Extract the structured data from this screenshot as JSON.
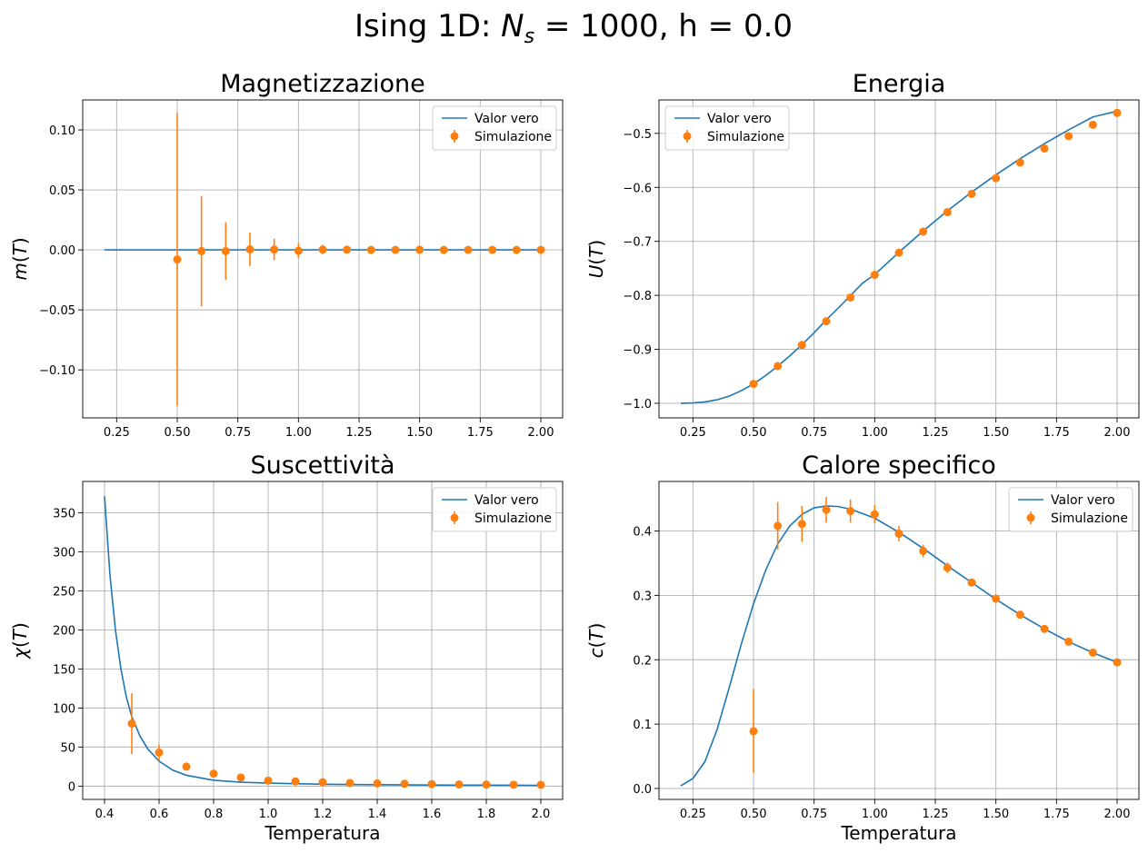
{
  "figure": {
    "suptitle_prefix": "Ising 1D: ",
    "suptitle_symbol": "N",
    "suptitle_subscript": "s",
    "suptitle_suffix": " = 1000, h = 0.0"
  },
  "colors": {
    "line": "#1f77b4",
    "points": "#ff7f0e",
    "grid": "#b0b0b0",
    "axis": "#000000"
  },
  "chart_data": [
    {
      "id": "magn",
      "type": "line",
      "title": "Magnetizzazione",
      "xlabel": "",
      "ylabel_sym": "m",
      "ylabel_arg": "T",
      "xlim": [
        0.11,
        2.09
      ],
      "ylim": [
        -0.14,
        0.125
      ],
      "xticks": [
        0.25,
        0.5,
        0.75,
        1.0,
        1.25,
        1.5,
        1.75,
        2.0
      ],
      "xticklabels": [
        "0.25",
        "0.50",
        "0.75",
        "1.00",
        "1.25",
        "1.50",
        "1.75",
        "2.00"
      ],
      "yticks": [
        -0.1,
        -0.05,
        0.0,
        0.05,
        0.1
      ],
      "yticklabels": [
        "−0.10",
        "−0.05",
        "0.00",
        "0.05",
        "0.10"
      ],
      "legend": {
        "position": "top-right",
        "line_label": "Valor vero",
        "points_label": "Simulazione"
      },
      "series": [
        {
          "name": "Valor vero",
          "kind": "curve",
          "x": [
            0.2,
            2.0
          ],
          "y": [
            0.0,
            0.0
          ]
        },
        {
          "name": "Simulazione",
          "kind": "errorbar",
          "x": [
            0.5,
            0.6,
            0.7,
            0.8,
            0.9,
            1.0,
            1.1,
            1.2,
            1.3,
            1.4,
            1.5,
            1.6,
            1.7,
            1.8,
            1.9,
            2.0
          ],
          "y": [
            -0.008,
            -0.001,
            -0.001,
            0.0005,
            0.0003,
            -0.0008,
            0.0003,
            0.0002,
            0.0,
            0.0,
            0.0001,
            0.0,
            0.0,
            0.0,
            0.0,
            0.0
          ],
          "yerr": [
            0.122,
            0.046,
            0.024,
            0.014,
            0.009,
            0.006,
            0.004,
            0.003,
            0.002,
            0.002,
            0.0015,
            0.001,
            0.001,
            0.001,
            0.001,
            0.001
          ]
        }
      ]
    },
    {
      "id": "energia",
      "type": "line",
      "title": "Energia",
      "xlabel": "",
      "ylabel_sym": "U",
      "ylabel_arg": "T",
      "xlim": [
        0.11,
        2.09
      ],
      "ylim": [
        -1.027,
        -0.438
      ],
      "xticks": [
        0.25,
        0.5,
        0.75,
        1.0,
        1.25,
        1.5,
        1.75,
        2.0
      ],
      "xticklabels": [
        "0.25",
        "0.50",
        "0.75",
        "1.00",
        "1.25",
        "1.50",
        "1.75",
        "2.00"
      ],
      "yticks": [
        -1.0,
        -0.9,
        -0.8,
        -0.7,
        -0.6,
        -0.5
      ],
      "yticklabels": [
        "−1.0",
        "−0.9",
        "−0.8",
        "−0.7",
        "−0.6",
        "−0.5"
      ],
      "legend": {
        "position": "top-left",
        "line_label": "Valor vero",
        "points_label": "Simulazione"
      },
      "series": [
        {
          "name": "Valor vero",
          "kind": "curve",
          "x": [
            0.2,
            0.25,
            0.3,
            0.35,
            0.4,
            0.45,
            0.5,
            0.55,
            0.6,
            0.65,
            0.7,
            0.75,
            0.8,
            0.85,
            0.9,
            0.95,
            1.0,
            1.1,
            1.2,
            1.3,
            1.4,
            1.5,
            1.6,
            1.7,
            1.8,
            1.9,
            2.0
          ],
          "y": [
            -1.0,
            -0.9993,
            -0.9975,
            -0.9935,
            -0.9866,
            -0.9766,
            -0.964,
            -0.9488,
            -0.9311,
            -0.9119,
            -0.8915,
            -0.8694,
            -0.8455,
            -0.8233,
            -0.8005,
            -0.7773,
            -0.7616,
            -0.7201,
            -0.6807,
            -0.6436,
            -0.6089,
            -0.5767,
            -0.5468,
            -0.5191,
            -0.4934,
            -0.4696,
            -0.4587
          ]
        },
        {
          "name": "Simulazione",
          "kind": "errorbar",
          "x": [
            0.5,
            0.6,
            0.7,
            0.8,
            0.9,
            1.0,
            1.1,
            1.2,
            1.3,
            1.4,
            1.5,
            1.6,
            1.7,
            1.8,
            1.9,
            2.0
          ],
          "y": [
            -0.964,
            -0.931,
            -0.892,
            -0.848,
            -0.804,
            -0.762,
            -0.721,
            -0.682,
            -0.646,
            -0.612,
            -0.583,
            -0.554,
            -0.528,
            -0.505,
            -0.484,
            -0.462
          ],
          "yerr": [
            0.002,
            0.002,
            0.002,
            0.002,
            0.002,
            0.002,
            0.002,
            0.002,
            0.002,
            0.002,
            0.002,
            0.002,
            0.002,
            0.002,
            0.002,
            0.002
          ]
        }
      ]
    },
    {
      "id": "susc",
      "type": "line",
      "title": "Suscettività",
      "xlabel": "Temperatura",
      "ylabel_sym": "χ",
      "ylabel_arg": "T",
      "xlim": [
        0.32,
        2.08
      ],
      "ylim": [
        -17,
        390
      ],
      "xticks": [
        0.4,
        0.6,
        0.8,
        1.0,
        1.2,
        1.4,
        1.6,
        1.8,
        2.0
      ],
      "xticklabels": [
        "0.4",
        "0.6",
        "0.8",
        "1.0",
        "1.2",
        "1.4",
        "1.6",
        "1.8",
        "2.0"
      ],
      "yticks": [
        0,
        50,
        100,
        150,
        200,
        250,
        300,
        350
      ],
      "yticklabels": [
        "0",
        "50",
        "100",
        "150",
        "200",
        "250",
        "300",
        "350"
      ],
      "legend": {
        "position": "top-right",
        "line_label": "Valor vero",
        "points_label": "Simulazione"
      },
      "series": [
        {
          "name": "Valor vero",
          "kind": "curve",
          "x": [
            0.4,
            0.42,
            0.44,
            0.46,
            0.48,
            0.5,
            0.53,
            0.56,
            0.6,
            0.65,
            0.7,
            0.8,
            0.9,
            1.0,
            1.2,
            1.4,
            1.6,
            1.8,
            2.0
          ],
          "y": [
            371,
            270,
            200,
            150,
            114,
            89,
            64,
            47,
            32,
            20.5,
            13.9,
            7.5,
            5.0,
            3.8,
            2.4,
            1.8,
            1.4,
            1.2,
            1.0
          ]
        },
        {
          "name": "Simulazione",
          "kind": "errorbar",
          "x": [
            0.5,
            0.6,
            0.7,
            0.8,
            0.9,
            1.0,
            1.1,
            1.2,
            1.3,
            1.4,
            1.5,
            1.6,
            1.7,
            1.8,
            1.9,
            2.0
          ],
          "y": [
            80,
            43,
            25,
            16,
            11,
            7,
            6,
            5,
            4,
            3.5,
            3,
            2.5,
            2.2,
            2.0,
            1.8,
            1.6
          ],
          "yerr": [
            39,
            10,
            3,
            1.5,
            1,
            0.5,
            0.5,
            0.5,
            0.5,
            0.5,
            0.5,
            0.5,
            0.5,
            0.5,
            0.5,
            0.5
          ]
        }
      ]
    },
    {
      "id": "calore",
      "type": "line",
      "title": "Calore specifico",
      "xlabel": "Temperatura",
      "ylabel_sym": "c",
      "ylabel_arg": "T",
      "xlim": [
        0.11,
        2.09
      ],
      "ylim": [
        -0.017,
        0.477
      ],
      "xticks": [
        0.25,
        0.5,
        0.75,
        1.0,
        1.25,
        1.5,
        1.75,
        2.0
      ],
      "xticklabels": [
        "0.25",
        "0.50",
        "0.75",
        "1.00",
        "1.25",
        "1.50",
        "1.75",
        "2.00"
      ],
      "yticks": [
        0.0,
        0.1,
        0.2,
        0.3,
        0.4
      ],
      "yticklabels": [
        "0.0",
        "0.1",
        "0.2",
        "0.3",
        "0.4"
      ],
      "legend": {
        "position": "top-right",
        "line_label": "Valor vero",
        "points_label": "Simulazione"
      },
      "series": [
        {
          "name": "Valor vero",
          "kind": "curve",
          "x": [
            0.2,
            0.25,
            0.3,
            0.35,
            0.4,
            0.45,
            0.5,
            0.55,
            0.6,
            0.65,
            0.7,
            0.75,
            0.8,
            0.85,
            0.9,
            0.95,
            1.0,
            1.1,
            1.2,
            1.3,
            1.4,
            1.5,
            1.6,
            1.7,
            1.8,
            1.9,
            2.0
          ],
          "y": [
            0.004,
            0.0155,
            0.042,
            0.092,
            0.157,
            0.225,
            0.287,
            0.339,
            0.38,
            0.408,
            0.426,
            0.436,
            0.439,
            0.438,
            0.434,
            0.427,
            0.42,
            0.398,
            0.373,
            0.346,
            0.32,
            0.294,
            0.27,
            0.248,
            0.228,
            0.211,
            0.196
          ]
        },
        {
          "name": "Simulazione",
          "kind": "errorbar",
          "x": [
            0.5,
            0.6,
            0.7,
            0.8,
            0.9,
            1.0,
            1.1,
            1.2,
            1.3,
            1.4,
            1.5,
            1.6,
            1.7,
            1.8,
            1.9,
            2.0
          ],
          "y": [
            0.089,
            0.408,
            0.411,
            0.433,
            0.431,
            0.426,
            0.396,
            0.369,
            0.343,
            0.32,
            0.295,
            0.27,
            0.248,
            0.228,
            0.211,
            0.196
          ],
          "yerr": [
            0.065,
            0.037,
            0.028,
            0.02,
            0.018,
            0.014,
            0.012,
            0.01,
            0.008,
            0.006,
            0.005,
            0.004,
            0.004,
            0.003,
            0.003,
            0.003
          ]
        }
      ]
    }
  ]
}
